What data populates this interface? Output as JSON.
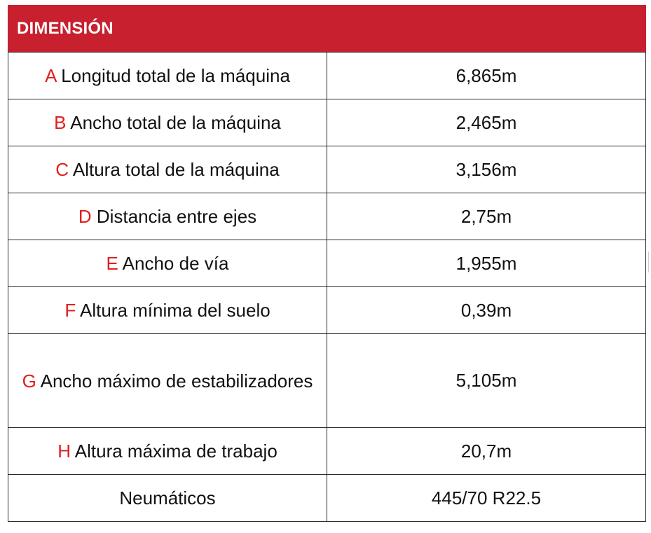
{
  "title": "DIMENSIÓN",
  "accent_color": "#c8202f",
  "letter_color": "#e0201f",
  "rows": [
    {
      "letter": "A",
      "label": "Longitud total de la máquina",
      "value": "6,865m"
    },
    {
      "letter": "B",
      "label": "Ancho total de la máquina",
      "value": "2,465m"
    },
    {
      "letter": "C",
      "label": "Altura total de la máquina",
      "value": "3,156m"
    },
    {
      "letter": "D",
      "label": "Distancia entre ejes",
      "value": "2,75m"
    },
    {
      "letter": "E",
      "label": "Ancho de vía",
      "value": "1,955m"
    },
    {
      "letter": "F",
      "label": "Altura mínima del suelo",
      "value": "0,39m"
    },
    {
      "letter": "G",
      "label": "Ancho máximo de estabilizadores",
      "value": "5,105m"
    },
    {
      "letter": "H",
      "label": "Altura máxima de trabajo",
      "value": "20,7m"
    },
    {
      "letter": "",
      "label": "Neumáticos",
      "value": "445/70 R22.5"
    }
  ]
}
